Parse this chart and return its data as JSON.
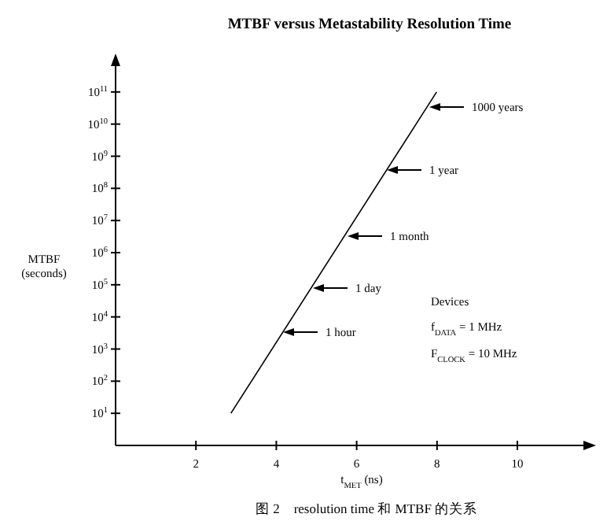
{
  "chart_data": {
    "type": "line",
    "title": "MTBF versus Metastability Resolution Time",
    "xlabel": "t$_{MET}$ (ns)",
    "ylabel": "MTBF (seconds)",
    "series": [
      {
        "color": "#000000",
        "x": [
          2.87,
          7.99
        ],
        "values": [
          10,
          100000000000
        ]
      }
    ],
    "log": "y",
    "grid": false,
    "marker": "none",
    "line_style": "solid",
    "xlim": [
      0,
      11.8
    ],
    "xticks": [
      2,
      4,
      6,
      8,
      10
    ],
    "ylim": [
      1,
      1000000000000
    ],
    "yticks": [
      {
        "value": 10,
        "label": "10$^{1}$"
      },
      {
        "value": 100,
        "label": "10$^{2}$"
      },
      {
        "value": 1000,
        "label": "10$^{3}$"
      },
      {
        "value": 10000,
        "label": "10$^{4}$"
      },
      {
        "value": 100000,
        "label": "10$^{5}$"
      },
      {
        "value": 1000000,
        "label": "10$^{6}$"
      },
      {
        "value": 10000000,
        "label": "10$^{7}$"
      },
      {
        "value": 100000000,
        "label": "10$^{8}$"
      },
      {
        "value": 1000000000,
        "label": "10$^{9}$"
      },
      {
        "value": 10000000000,
        "label": "10$^{10}$"
      },
      {
        "value": 100000000000,
        "label": "10$^{11}$"
      }
    ],
    "annotations": [
      "1 hour",
      "1 day",
      "1 month",
      "1 year",
      "1000 years",
      "Devices",
      "f$_{DATA}$ = 1 MHz",
      "F$_{CLOCK}$ = 10 MHz",
      "图 2　resolution time 和 MTBF 的关系"
    ]
  }
}
